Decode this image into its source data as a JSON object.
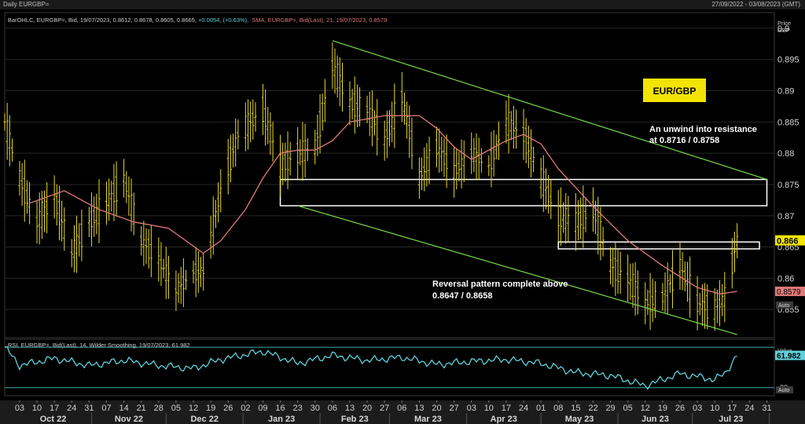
{
  "window": {
    "title": "Daily EURGBP=",
    "date_range": "27/09/2022 - 03/08/2023 (GMT)"
  },
  "legend": {
    "ohlc_prefix": "BarOHLC, EURGBP=, Bid, 19/07/2023, 0.8612, 0.8678, 0.8605, 0.8665, ",
    "ohlc_change": "+0.0054, (+0.63%),",
    "sma": "SMA, EURGBP=, Bid(Last), 21, 19/07/2023, 0.8579",
    "rsi": "RSI, EURGBP=, Bid(Last), 14, Wilder Smoothing, 19/07/2023, 61.982"
  },
  "price_axis": {
    "title_line1": "Price",
    "title_line2": "GBP",
    "ticks": [
      "0.9",
      "0.895",
      "0.89",
      "0.885",
      "0.88",
      "0.875",
      "0.87",
      "0.865",
      "0.86",
      "0.855"
    ],
    "auto_label": "Auto",
    "last_price_tag": "0.866",
    "sma_tag": "0.8579"
  },
  "rsi_axis": {
    "title_line1": "Value",
    "title_line2": "GBP",
    "ticks": [
      "30"
    ],
    "tag": "61.982",
    "auto_label": "Auto"
  },
  "annotations": {
    "label_box": "EUR/GBP",
    "resistance_line1": "An unwind into resistance",
    "resistance_line2": "at 0.8716 / 0.8758",
    "reversal_line1": "Reversal pattern complete above",
    "reversal_line2": "0.8647 / 0.8658"
  },
  "x_axis": {
    "day_labels": [
      "03",
      "10",
      "17",
      "24",
      "31",
      "07",
      "14",
      "21",
      "28",
      "05",
      "12",
      "19",
      "26",
      "02",
      "09",
      "16",
      "23",
      "30",
      "06",
      "13",
      "20",
      "27",
      "06",
      "13",
      "20",
      "27",
      "03",
      "10",
      "17",
      "24",
      "01",
      "08",
      "15",
      "22",
      "29",
      "05",
      "12",
      "19",
      "26",
      "03",
      "10",
      "17",
      "24",
      "31"
    ],
    "month_labels": [
      "Oct 22",
      "Nov 22",
      "Dec 22",
      "Jan 23",
      "Feb 23",
      "Mar 23",
      "Apr 23",
      "May 23",
      "Jun 23",
      "Jul 23"
    ]
  },
  "colors": {
    "bars": "#e6d82a",
    "sma": "#e07a7a",
    "rsi": "#5fd0d8",
    "channel": "#7ad94a",
    "zones": "#ffffff",
    "label_bg": "#f2e400"
  },
  "chart_data": {
    "type": "line",
    "ylim": [
      0.8505,
      0.9025
    ],
    "price_points": [
      [
        "2022-09-27",
        0.885
      ],
      [
        "2022-10-03",
        0.876
      ],
      [
        "2022-10-10",
        0.869
      ],
      [
        "2022-10-17",
        0.873
      ],
      [
        "2022-10-24",
        0.864
      ],
      [
        "2022-10-31",
        0.869
      ],
      [
        "2022-11-07",
        0.872
      ],
      [
        "2022-11-14",
        0.876
      ],
      [
        "2022-11-21",
        0.866
      ],
      [
        "2022-11-28",
        0.863
      ],
      [
        "2022-12-05",
        0.858
      ],
      [
        "2022-12-12",
        0.861
      ],
      [
        "2022-12-16",
        0.861
      ],
      [
        "2022-12-23",
        0.874
      ],
      [
        "2022-12-30",
        0.883
      ],
      [
        "2023-01-09",
        0.887
      ],
      [
        "2023-01-16",
        0.878
      ],
      [
        "2023-01-23",
        0.88
      ],
      [
        "2023-01-30",
        0.881
      ],
      [
        "2023-02-06",
        0.894
      ],
      [
        "2023-02-13",
        0.888
      ],
      [
        "2023-02-20",
        0.887
      ],
      [
        "2023-02-27",
        0.882
      ],
      [
        "2023-03-06",
        0.889
      ],
      [
        "2023-03-13",
        0.876
      ],
      [
        "2023-03-20",
        0.881
      ],
      [
        "2023-03-27",
        0.877
      ],
      [
        "2023-04-03",
        0.88
      ],
      [
        "2023-04-10",
        0.878
      ],
      [
        "2023-04-17",
        0.885
      ],
      [
        "2023-04-24",
        0.883
      ],
      [
        "2023-05-01",
        0.876
      ],
      [
        "2023-05-08",
        0.87
      ],
      [
        "2023-05-15",
        0.869
      ],
      [
        "2023-05-22",
        0.871
      ],
      [
        "2023-05-29",
        0.862
      ],
      [
        "2023-06-05",
        0.86
      ],
      [
        "2023-06-12",
        0.856
      ],
      [
        "2023-06-19",
        0.857
      ],
      [
        "2023-06-26",
        0.862
      ],
      [
        "2023-07-03",
        0.856
      ],
      [
        "2023-07-10",
        0.855
      ],
      [
        "2023-07-14",
        0.857
      ],
      [
        "2023-07-19",
        0.866
      ]
    ],
    "sma_points": [
      [
        "2022-10-07",
        0.872
      ],
      [
        "2022-10-21",
        0.874
      ],
      [
        "2022-11-04",
        0.871
      ],
      [
        "2022-11-18",
        0.869
      ],
      [
        "2022-12-02",
        0.868
      ],
      [
        "2022-12-09",
        0.866
      ],
      [
        "2022-12-16",
        0.864
      ],
      [
        "2022-12-23",
        0.866
      ],
      [
        "2023-01-02",
        0.871
      ],
      [
        "2023-01-09",
        0.876
      ],
      [
        "2023-01-16",
        0.88
      ],
      [
        "2023-01-23",
        0.8805
      ],
      [
        "2023-01-30",
        0.8805
      ],
      [
        "2023-02-06",
        0.882
      ],
      [
        "2023-02-13",
        0.885
      ],
      [
        "2023-02-27",
        0.886
      ],
      [
        "2023-03-13",
        0.886
      ],
      [
        "2023-03-20",
        0.884
      ],
      [
        "2023-03-27",
        0.881
      ],
      [
        "2023-04-03",
        0.879
      ],
      [
        "2023-04-17",
        0.882
      ],
      [
        "2023-04-24",
        0.883
      ],
      [
        "2023-05-01",
        0.8815
      ],
      [
        "2023-05-08",
        0.8775
      ],
      [
        "2023-05-22",
        0.8715
      ],
      [
        "2023-06-05",
        0.866
      ],
      [
        "2023-06-19",
        0.862
      ],
      [
        "2023-07-03",
        0.8585
      ],
      [
        "2023-07-12",
        0.8575
      ],
      [
        "2023-07-19",
        0.8579
      ]
    ],
    "rsi_points": [
      [
        "2022-09-27",
        70
      ],
      [
        "2022-10-03",
        52
      ],
      [
        "2022-10-17",
        59
      ],
      [
        "2022-10-31",
        52
      ],
      [
        "2022-11-14",
        57
      ],
      [
        "2022-11-28",
        52
      ],
      [
        "2022-12-12",
        49
      ],
      [
        "2022-12-23",
        58
      ],
      [
        "2023-01-09",
        66
      ],
      [
        "2023-01-23",
        54
      ],
      [
        "2023-02-06",
        62
      ],
      [
        "2023-02-20",
        57
      ],
      [
        "2023-03-06",
        60
      ],
      [
        "2023-03-20",
        53
      ],
      [
        "2023-04-03",
        56
      ],
      [
        "2023-04-17",
        58
      ],
      [
        "2023-05-01",
        54
      ],
      [
        "2023-05-15",
        45
      ],
      [
        "2023-05-29",
        42
      ],
      [
        "2023-06-12",
        32
      ],
      [
        "2023-06-19",
        38
      ],
      [
        "2023-06-26",
        44
      ],
      [
        "2023-07-10",
        38
      ],
      [
        "2023-07-14",
        44
      ],
      [
        "2023-07-19",
        61.982
      ]
    ],
    "rsi_levels": [
      30,
      70
    ],
    "rsi_ylim": [
      22,
      78
    ],
    "channel_upper": [
      [
        "2023-02-06",
        0.898
      ],
      [
        "2023-07-31",
        0.8758
      ]
    ],
    "channel_lower": [
      [
        "2023-01-23",
        0.8716
      ],
      [
        "2023-07-19",
        0.851
      ]
    ],
    "zones": [
      {
        "from": "2023-01-16",
        "to": "2023-07-31",
        "low": 0.8716,
        "high": 0.8758
      },
      {
        "from": "2023-05-08",
        "to": "2023-07-28",
        "low": 0.8647,
        "high": 0.8658
      }
    ]
  }
}
